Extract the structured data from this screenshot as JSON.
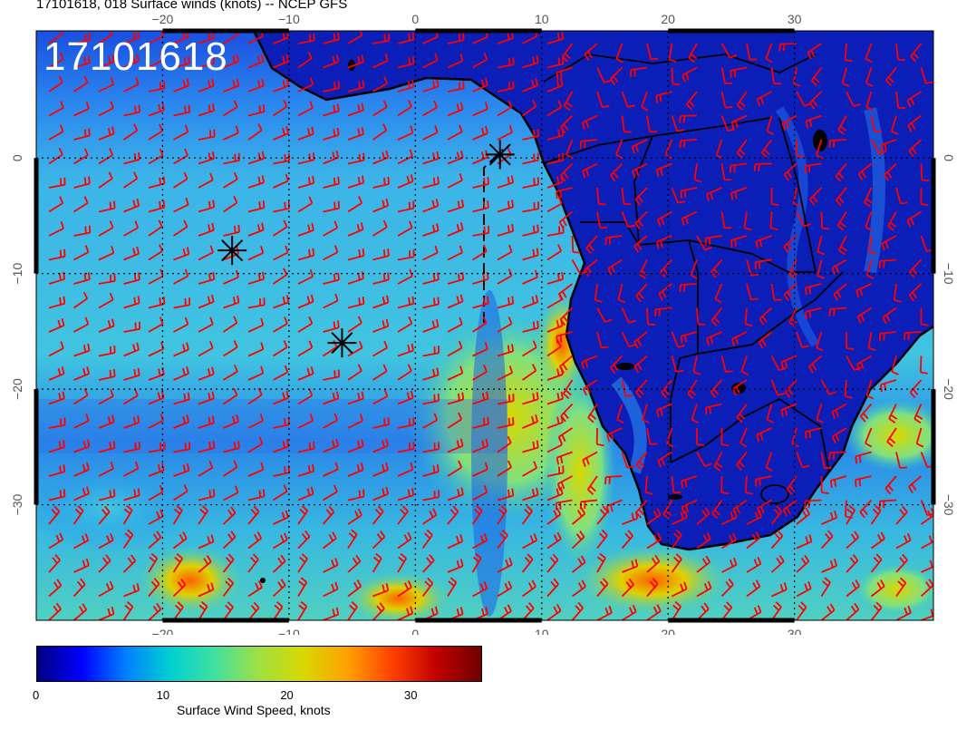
{
  "title": "17101618, 018 Surface winds (knots) -- NCEP GFS",
  "date_stamp": "17101618",
  "colorbar": {
    "label": "Surface Wind Speed, knots",
    "ticks": [
      "0",
      "10",
      "20",
      "30"
    ],
    "tick_values": [
      0,
      10,
      20,
      30
    ],
    "range": [
      0,
      36
    ],
    "colors": [
      "#00007f",
      "#0000ff",
      "#0080ff",
      "#00d0d0",
      "#40e0a0",
      "#a0e040",
      "#d8d800",
      "#ffa000",
      "#ff4000",
      "#c00000",
      "#700000"
    ]
  },
  "axes": {
    "lon_ticks": [
      "−20",
      "−10",
      "0",
      "10",
      "20",
      "30"
    ],
    "lon_values": [
      -20,
      -10,
      0,
      10,
      20,
      30
    ],
    "lat_ticks": [
      "0",
      "−10",
      "−20",
      "−30"
    ],
    "lat_values": [
      0,
      -10,
      -20,
      -30
    ],
    "lon_range": [
      -30,
      41
    ],
    "lat_range": [
      -40,
      11
    ]
  },
  "markers": [
    {
      "lon": -14.5,
      "lat": -8.0,
      "symbol": "asterisk"
    },
    {
      "lon": -5.8,
      "lat": -16.0,
      "symbol": "asterisk"
    },
    {
      "lon": 6.7,
      "lat": 0.3,
      "symbol": "asterisk"
    }
  ],
  "barb_color": "#ff0000"
}
